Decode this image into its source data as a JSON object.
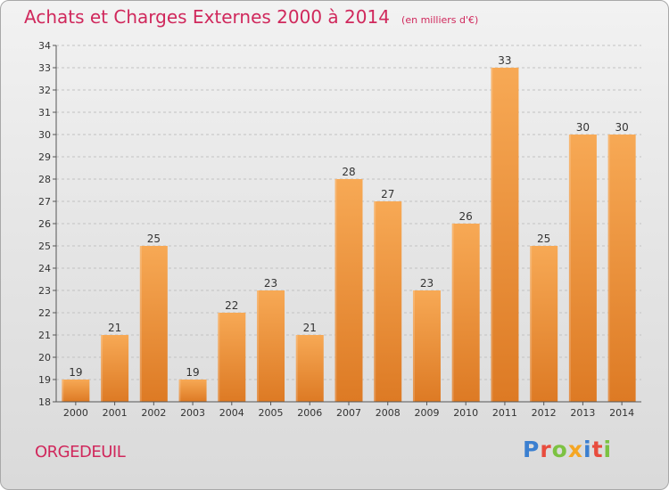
{
  "header": {
    "title": "Achats et Charges Externes 2000 à 2014",
    "unit_note": "(en milliers d'€)"
  },
  "footer": {
    "city": "ORGEDEUIL",
    "logo_letters": [
      "P",
      "r",
      "o",
      "x",
      "i",
      "t",
      "i"
    ],
    "logo_colors": [
      "#3b7fd0",
      "#e84c3d",
      "#7cc242",
      "#f5a623",
      "#3b7fd0",
      "#e84c3d",
      "#7cc242"
    ]
  },
  "colors": {
    "bar": "#f0963d",
    "bar_light": "#f7a955",
    "bar_dark": "#dd7a24",
    "title": "#d0285c",
    "grid": "#c2c2c2",
    "axis": "#555555"
  },
  "chart_data": {
    "type": "bar",
    "title": "Achats et Charges Externes 2000 à 2014",
    "subtitle": "(en milliers d'€)",
    "xlabel": "",
    "ylabel": "",
    "categories": [
      "2000",
      "2001",
      "2002",
      "2003",
      "2004",
      "2005",
      "2006",
      "2007",
      "2008",
      "2009",
      "2010",
      "2011",
      "2012",
      "2013",
      "2014"
    ],
    "values": [
      19,
      21,
      25,
      19,
      22,
      23,
      21,
      28,
      27,
      23,
      26,
      33,
      25,
      30,
      30
    ],
    "ylim": [
      18,
      34
    ],
    "yticks": [
      18,
      19,
      20,
      21,
      22,
      23,
      24,
      25,
      26,
      27,
      28,
      29,
      30,
      31,
      32,
      33,
      34
    ],
    "grid": true,
    "data_labels": true
  }
}
